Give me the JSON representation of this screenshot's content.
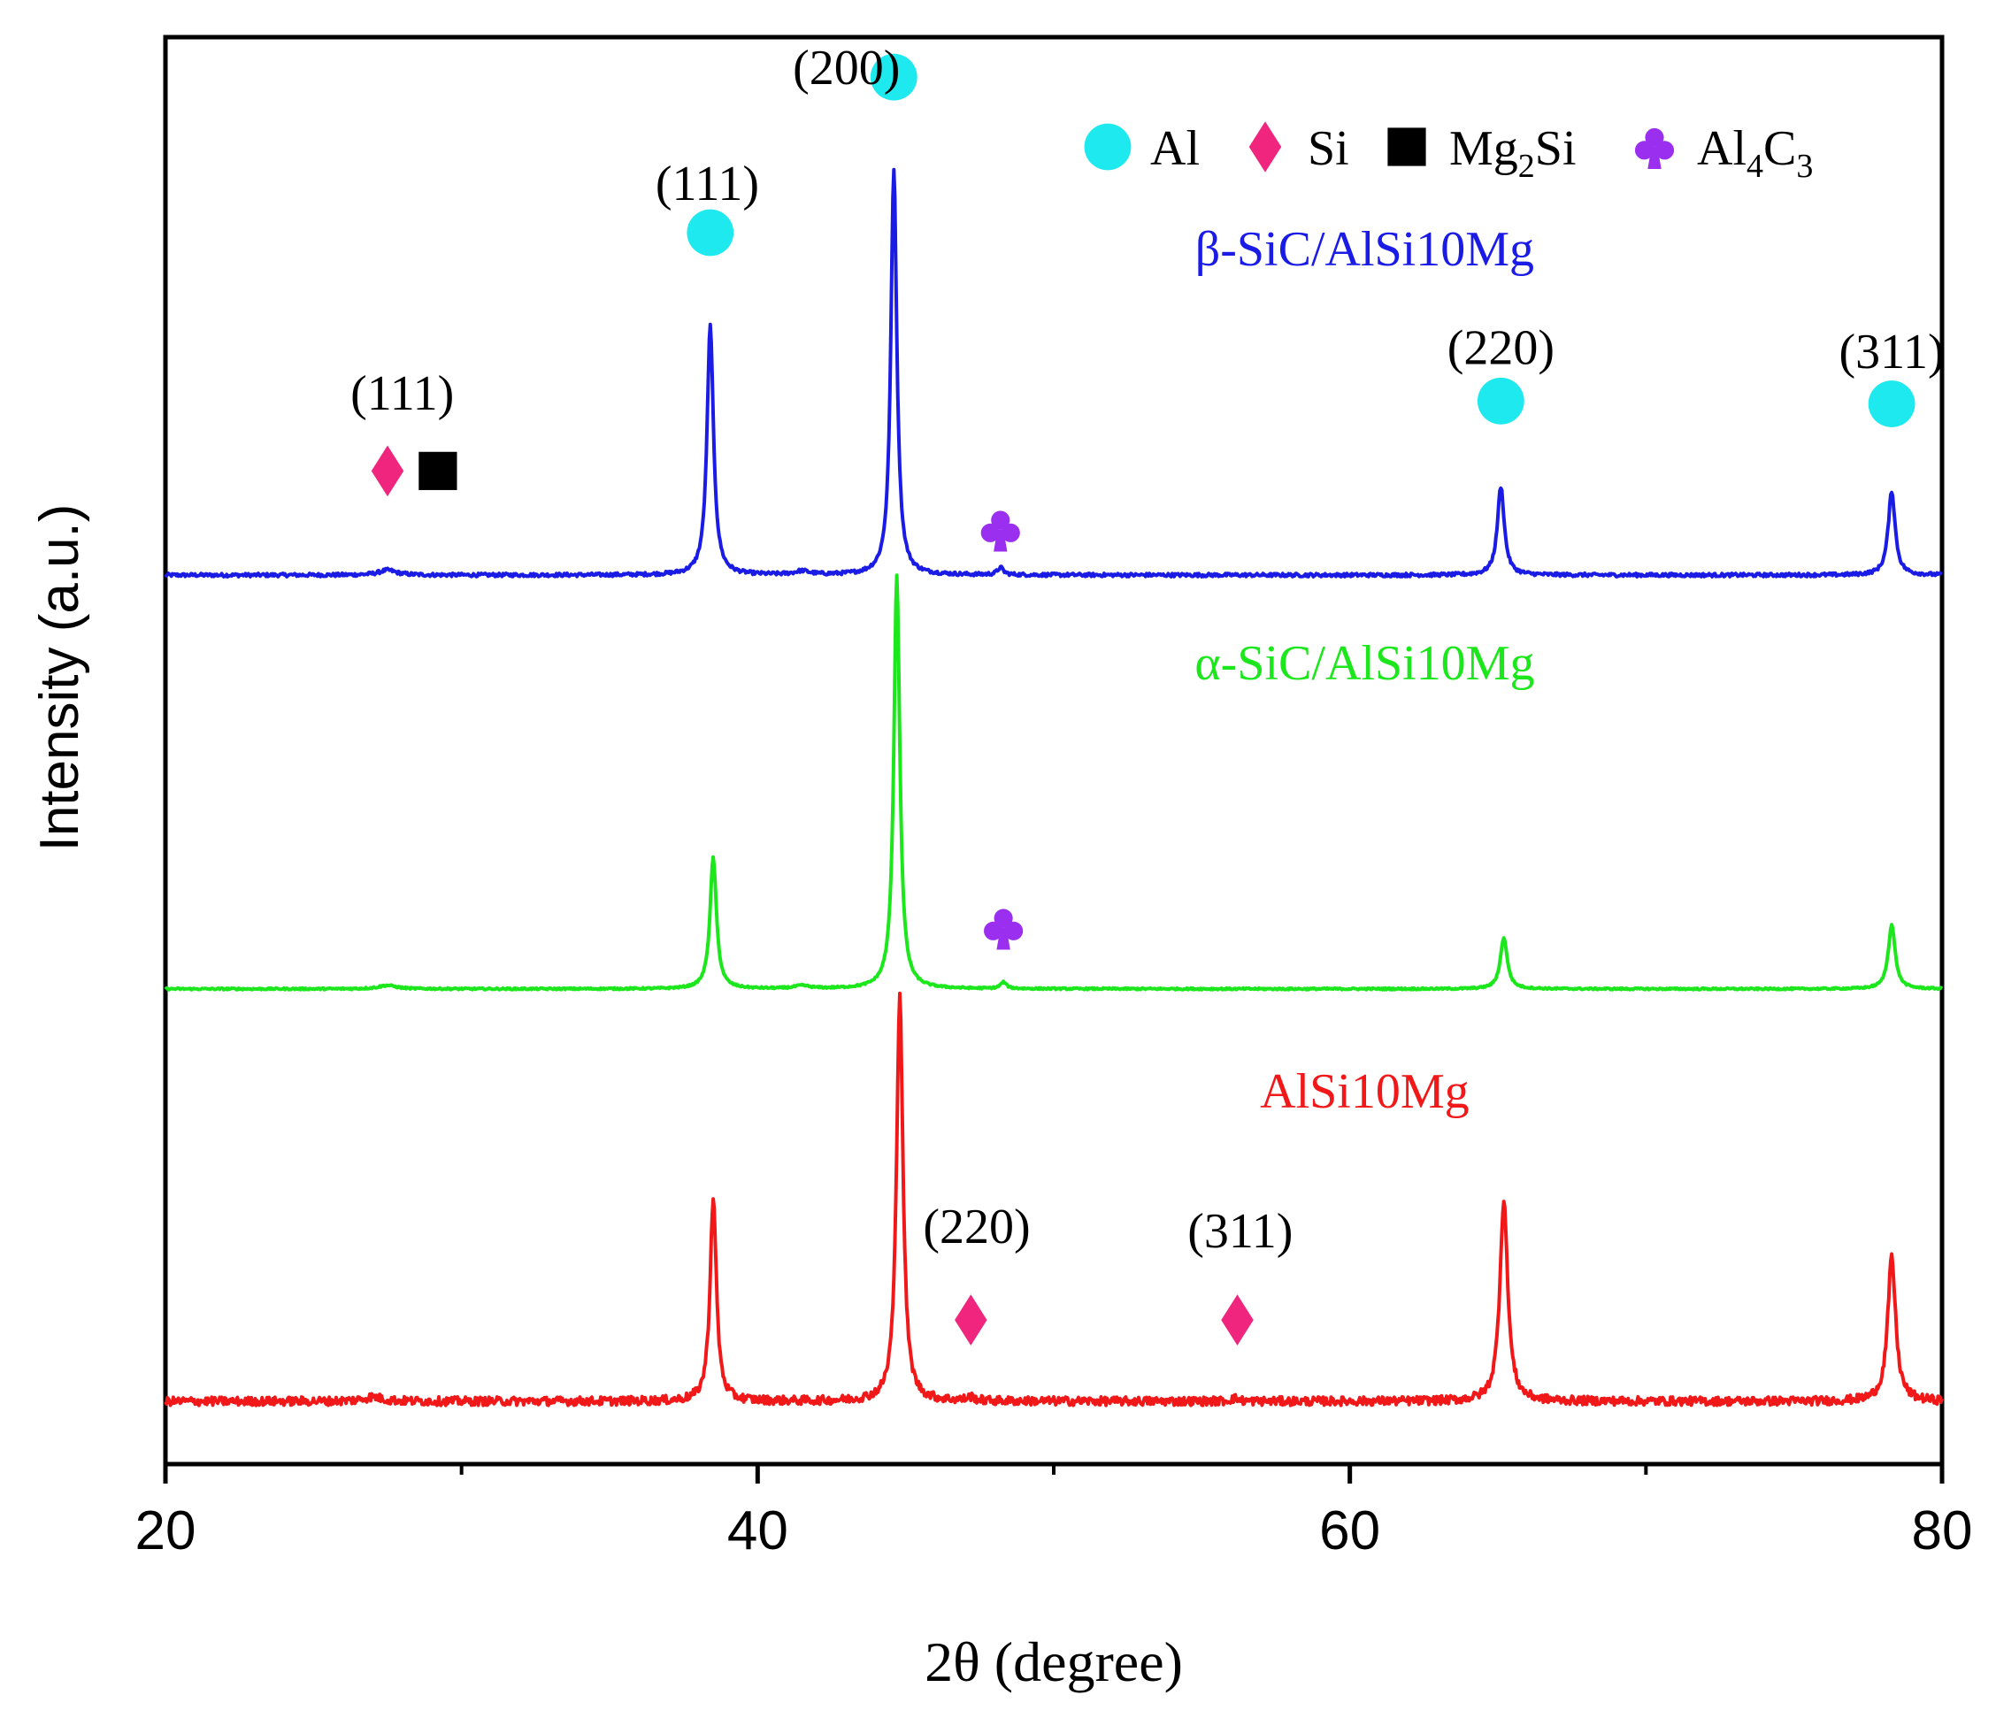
{
  "chart_data": {
    "type": "line",
    "title": "",
    "xlabel": "2θ (degree)",
    "ylabel": "Intensity (a.u.)",
    "xlim": [
      20,
      80
    ],
    "ylim": [
      0,
      100
    ],
    "x_ticks": [
      20,
      40,
      60,
      80
    ],
    "x_tick_labels": [
      "20",
      "40",
      "60",
      "80"
    ],
    "x_minor_ticks": [
      30,
      50,
      70
    ],
    "grid": false,
    "legend": {
      "placement": "top-right",
      "entries": [
        {
          "name": "Al",
          "marker": "circle",
          "color": "#1de9ee"
        },
        {
          "name": "Si",
          "marker": "diamond",
          "color": "#f0267e"
        },
        {
          "name": "Mg",
          "sub": "2",
          "tail": "Si",
          "marker": "square",
          "color": "#000000"
        },
        {
          "name": "Al",
          "sub": "4",
          "tail": "C",
          "sub2": "3",
          "marker": "club",
          "color": "#9b2ff0"
        }
      ]
    },
    "series": [
      {
        "name": "β-SiC/AlSi10Mg",
        "color": "#1b1be6",
        "baseline": 62.3,
        "peaks": [
          {
            "x": 27.5,
            "h": 0.35,
            "w": 0.35
          },
          {
            "x": 38.4,
            "h": 17.5,
            "w": 0.13
          },
          {
            "x": 41.5,
            "h": 0.25,
            "w": 0.3
          },
          {
            "x": 44.6,
            "h": 28.5,
            "w": 0.12
          },
          {
            "x": 48.2,
            "h": 0.5,
            "w": 0.12
          },
          {
            "x": 65.1,
            "h": 6.2,
            "w": 0.14
          },
          {
            "x": 78.3,
            "h": 5.9,
            "w": 0.14
          }
        ],
        "noise": 0.12
      },
      {
        "name": "α-SiC/AlSi10Mg",
        "color": "#1ce61c",
        "baseline": 33.3,
        "peaks": [
          {
            "x": 27.5,
            "h": 0.25,
            "w": 0.35
          },
          {
            "x": 38.5,
            "h": 9.2,
            "w": 0.13
          },
          {
            "x": 41.5,
            "h": 0.2,
            "w": 0.3
          },
          {
            "x": 44.7,
            "h": 29.0,
            "w": 0.12
          },
          {
            "x": 48.3,
            "h": 0.45,
            "w": 0.12
          },
          {
            "x": 65.2,
            "h": 3.6,
            "w": 0.14
          },
          {
            "x": 78.3,
            "h": 4.5,
            "w": 0.14
          }
        ],
        "noise": 0.06
      },
      {
        "name": "AlSi10Mg",
        "color": "#f01818",
        "baseline": 4.4,
        "peaks": [
          {
            "x": 27.0,
            "h": 0.3,
            "w": 0.4
          },
          {
            "x": 38.5,
            "h": 14.2,
            "w": 0.13
          },
          {
            "x": 44.8,
            "h": 28.6,
            "w": 0.13
          },
          {
            "x": 47.2,
            "h": 0.25,
            "w": 0.15
          },
          {
            "x": 56.1,
            "h": 0.2,
            "w": 0.15
          },
          {
            "x": 65.2,
            "h": 14.1,
            "w": 0.16
          },
          {
            "x": 78.3,
            "h": 10.1,
            "w": 0.16
          }
        ],
        "noise": 0.3
      }
    ],
    "annotations": [
      {
        "text": "(200)",
        "x": 43.0,
        "y": 96.7,
        "color": "#000000"
      },
      {
        "text": "(111)",
        "x": 38.3,
        "y": 88.6,
        "color": "#000000"
      },
      {
        "text": "(220)",
        "x": 65.1,
        "y": 77.1,
        "color": "#000000"
      },
      {
        "text": "(311)",
        "x": 78.3,
        "y": 76.8,
        "color": "#000000"
      },
      {
        "text": "(111)",
        "x": 28.0,
        "y": 73.9,
        "color": "#000000"
      },
      {
        "text": "(220)",
        "x": 47.4,
        "y": 15.5,
        "color": "#000000"
      },
      {
        "text": "(311)",
        "x": 56.3,
        "y": 15.2,
        "color": "#000000"
      }
    ],
    "series_labels": [
      {
        "series": 0,
        "x": 60.5,
        "y": 84.0
      },
      {
        "series": 1,
        "x": 60.5,
        "y": 55.0
      },
      {
        "series": 2,
        "x": 60.5,
        "y": 25.0
      }
    ],
    "phase_markers": [
      {
        "phase": "Al",
        "marker": "circle",
        "x": 44.6,
        "y": 97.2,
        "color": "#1de9ee"
      },
      {
        "phase": "Al",
        "marker": "circle",
        "x": 38.4,
        "y": 86.3,
        "color": "#1de9ee"
      },
      {
        "phase": "Al",
        "marker": "circle",
        "x": 65.1,
        "y": 74.5,
        "color": "#1de9ee"
      },
      {
        "phase": "Al",
        "marker": "circle",
        "x": 78.3,
        "y": 74.3,
        "color": "#1de9ee"
      },
      {
        "phase": "Si",
        "marker": "diamond",
        "x": 27.5,
        "y": 69.6,
        "color": "#f0267e"
      },
      {
        "phase": "Mg2Si",
        "marker": "square",
        "x": 29.2,
        "y": 69.6,
        "color": "#000000"
      },
      {
        "phase": "Al4C3",
        "marker": "club",
        "x": 48.2,
        "y": 65.5,
        "color": "#9b2ff0"
      },
      {
        "phase": "Al4C3",
        "marker": "club",
        "x": 48.3,
        "y": 37.6,
        "color": "#9b2ff0"
      },
      {
        "phase": "Si",
        "marker": "diamond",
        "x": 47.2,
        "y": 10.1,
        "color": "#f0267e"
      },
      {
        "phase": "Si",
        "marker": "diamond",
        "x": 56.2,
        "y": 10.1,
        "color": "#f0267e"
      }
    ]
  }
}
